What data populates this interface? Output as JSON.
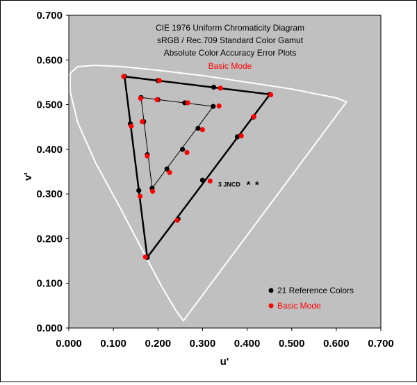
{
  "chart_data": {
    "type": "scatter",
    "title_lines": [
      "CIE 1976 Uniform Chromaticity Diagram",
      "sRGB / Rec.709 Standard Color Gamut",
      "Absolute Color Accuracy Error Plots"
    ],
    "subtitle": "Basic Mode",
    "xlabel": "u'",
    "ylabel": "v'",
    "xlim": [
      0,
      0.7
    ],
    "ylim": [
      0,
      0.7
    ],
    "x_ticks": [
      "0.000",
      "0.100",
      "0.200",
      "0.300",
      "0.400",
      "0.500",
      "0.600",
      "0.700"
    ],
    "y_ticks": [
      "0.000",
      "0.100",
      "0.200",
      "0.300",
      "0.400",
      "0.500",
      "0.600",
      "0.700"
    ],
    "grid": false,
    "colors": {
      "plot_bg": "#c0c0c0",
      "locus": "#ffffff",
      "reference": "#000000",
      "measured": "#ff0000",
      "subtitle": "#ff0000"
    },
    "locus": {
      "u": [
        0.257,
        0.24,
        0.21,
        0.17,
        0.12,
        0.06,
        0.02,
        0.003,
        0.003,
        0.02,
        0.06,
        0.12,
        0.2,
        0.3,
        0.4,
        0.5,
        0.56,
        0.6,
        0.623,
        0.257
      ],
      "v": [
        0.016,
        0.04,
        0.09,
        0.165,
        0.26,
        0.37,
        0.46,
        0.53,
        0.57,
        0.585,
        0.588,
        0.585,
        0.577,
        0.565,
        0.55,
        0.535,
        0.523,
        0.515,
        0.506,
        0.016
      ]
    },
    "outer_gamut": {
      "u": [
        0.125,
        0.451,
        0.176,
        0.125
      ],
      "v": [
        0.563,
        0.523,
        0.158,
        0.563
      ]
    },
    "inner_gamut": {
      "u": [
        0.162,
        0.324,
        0.187,
        0.162
      ],
      "v": [
        0.516,
        0.496,
        0.313,
        0.516
      ]
    },
    "series": [
      {
        "name": "21 Reference Colors",
        "u": [
          0.125,
          0.2,
          0.325,
          0.451,
          0.414,
          0.378,
          0.3,
          0.245,
          0.176,
          0.157,
          0.138,
          0.162,
          0.2,
          0.26,
          0.324,
          0.29,
          0.255,
          0.22,
          0.187,
          0.176,
          0.168
        ],
        "v": [
          0.563,
          0.554,
          0.539,
          0.523,
          0.472,
          0.428,
          0.331,
          0.244,
          0.158,
          0.308,
          0.457,
          0.516,
          0.511,
          0.504,
          0.496,
          0.447,
          0.4,
          0.356,
          0.313,
          0.388,
          0.462
        ]
      },
      {
        "name": "Basic Mode",
        "u": [
          0.123,
          0.203,
          0.34,
          0.453,
          0.415,
          0.387,
          0.317,
          0.243,
          0.172,
          0.16,
          0.14,
          0.161,
          0.198,
          0.267,
          0.337,
          0.3,
          0.265,
          0.226,
          0.188,
          0.176,
          0.165
        ],
        "v": [
          0.563,
          0.554,
          0.537,
          0.522,
          0.473,
          0.43,
          0.329,
          0.241,
          0.159,
          0.295,
          0.452,
          0.514,
          0.511,
          0.504,
          0.497,
          0.444,
          0.393,
          0.348,
          0.306,
          0.385,
          0.462
        ]
      }
    ],
    "annotation": {
      "text": "3 JNCD",
      "u": 0.335,
      "v": 0.323,
      "marks": [
        [
          0.403,
          0.323
        ],
        [
          0.422,
          0.323
        ]
      ]
    },
    "legend_position": "bottom-right"
  }
}
